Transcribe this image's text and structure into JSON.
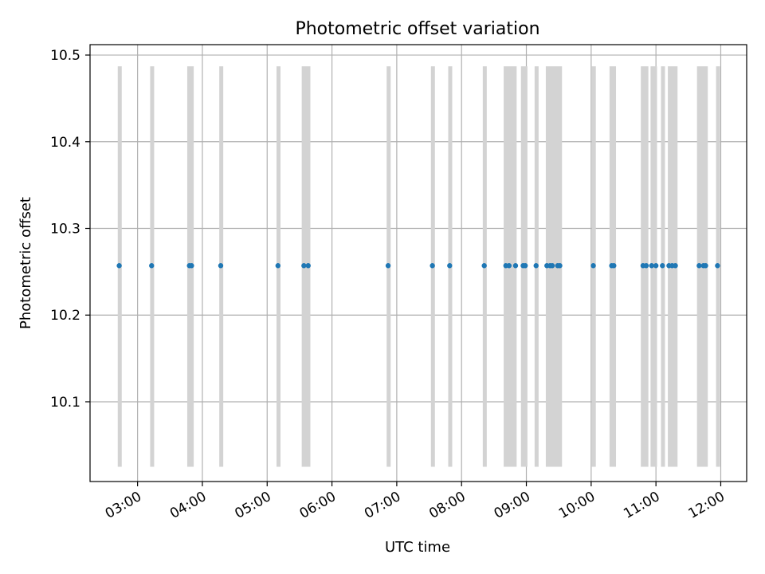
{
  "chart_data": {
    "type": "scatter",
    "title": "Photometric offset variation",
    "xlabel": "UTC time",
    "ylabel": "Photometric offset",
    "x_axis_type": "time",
    "xlim": [
      "02:16",
      "12:24"
    ],
    "ylim": [
      10.008,
      10.512
    ],
    "x_ticks": [
      "03:00",
      "04:00",
      "05:00",
      "06:00",
      "07:00",
      "08:00",
      "09:00",
      "10:00",
      "11:00",
      "12:00"
    ],
    "y_ticks": [
      10.1,
      10.2,
      10.3,
      10.4,
      10.5
    ],
    "grid": true,
    "legend": "none",
    "colors": {
      "points": "#1f77b4",
      "bands": "#d3d3d3",
      "grid": "#b0b0b0"
    },
    "band_range": [
      10.025,
      10.487
    ],
    "series": [
      {
        "values": [
          {
            "x": "02:43",
            "y": 10.257
          },
          {
            "x": "03:13",
            "y": 10.257
          },
          {
            "x": "03:48",
            "y": 10.257
          },
          {
            "x": "03:50",
            "y": 10.257
          },
          {
            "x": "04:17",
            "y": 10.257
          },
          {
            "x": "05:10",
            "y": 10.257
          },
          {
            "x": "05:34",
            "y": 10.257
          },
          {
            "x": "05:38",
            "y": 10.257
          },
          {
            "x": "06:52",
            "y": 10.257
          },
          {
            "x": "07:33",
            "y": 10.257
          },
          {
            "x": "07:49",
            "y": 10.257
          },
          {
            "x": "08:21",
            "y": 10.257
          },
          {
            "x": "08:41",
            "y": 10.257
          },
          {
            "x": "08:44",
            "y": 10.257
          },
          {
            "x": "08:50",
            "y": 10.257
          },
          {
            "x": "08:57",
            "y": 10.257
          },
          {
            "x": "08:59",
            "y": 10.257
          },
          {
            "x": "09:09",
            "y": 10.257
          },
          {
            "x": "09:19",
            "y": 10.257
          },
          {
            "x": "09:22",
            "y": 10.257
          },
          {
            "x": "09:24",
            "y": 10.257
          },
          {
            "x": "09:29",
            "y": 10.257
          },
          {
            "x": "09:31",
            "y": 10.257
          },
          {
            "x": "10:02",
            "y": 10.257
          },
          {
            "x": "10:19",
            "y": 10.257
          },
          {
            "x": "10:21",
            "y": 10.257
          },
          {
            "x": "10:48",
            "y": 10.257
          },
          {
            "x": "10:51",
            "y": 10.257
          },
          {
            "x": "10:56",
            "y": 10.257
          },
          {
            "x": "11:00",
            "y": 10.257
          },
          {
            "x": "11:06",
            "y": 10.257
          },
          {
            "x": "11:12",
            "y": 10.257
          },
          {
            "x": "11:15",
            "y": 10.257
          },
          {
            "x": "11:18",
            "y": 10.257
          },
          {
            "x": "11:40",
            "y": 10.257
          },
          {
            "x": "11:44",
            "y": 10.257
          },
          {
            "x": "11:46",
            "y": 10.257
          },
          {
            "x": "11:57",
            "y": 10.257
          }
        ]
      }
    ],
    "bands": [
      [
        "02:42",
        "02:45"
      ],
      [
        "03:12",
        "03:15"
      ],
      [
        "03:46",
        "03:52"
      ],
      [
        "04:16",
        "04:19"
      ],
      [
        "05:09",
        "05:12"
      ],
      [
        "05:32",
        "05:40"
      ],
      [
        "06:51",
        "06:54"
      ],
      [
        "07:32",
        "07:35"
      ],
      [
        "07:48",
        "07:51"
      ],
      [
        "08:20",
        "08:23"
      ],
      [
        "08:39",
        "08:51"
      ],
      [
        "08:55",
        "09:01"
      ],
      [
        "09:08",
        "09:11"
      ],
      [
        "09:18",
        "09:33"
      ],
      [
        "10:01",
        "10:04"
      ],
      [
        "10:17",
        "10:23"
      ],
      [
        "10:46",
        "10:53"
      ],
      [
        "10:55",
        "11:01"
      ],
      [
        "11:05",
        "11:08"
      ],
      [
        "11:11",
        "11:20"
      ],
      [
        "11:38",
        "11:48"
      ],
      [
        "11:56",
        "11:59"
      ]
    ]
  }
}
